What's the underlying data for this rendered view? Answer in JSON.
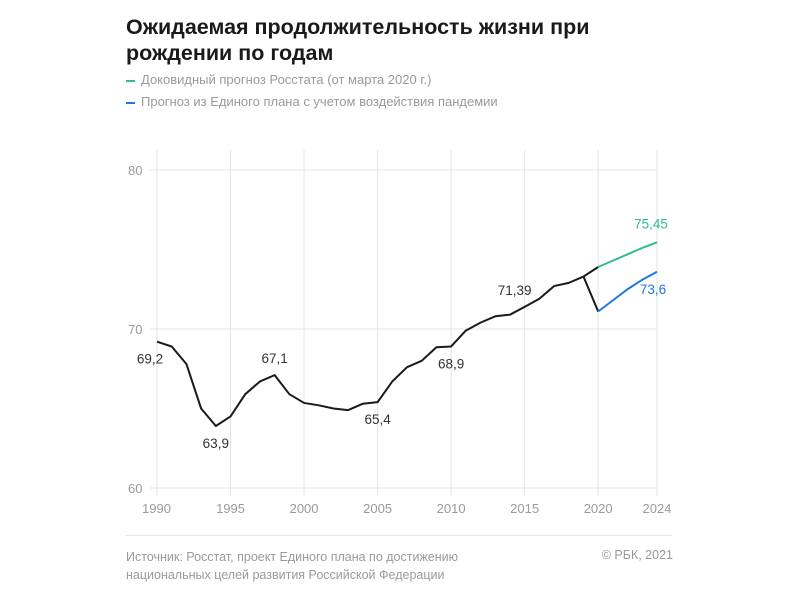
{
  "chart_data": {
    "type": "line",
    "title": "Ожидаемая продолжительность жизни при рождении по годам",
    "xlabel": "",
    "ylabel": "",
    "xlim": [
      1990,
      2024
    ],
    "ylim": [
      60,
      80
    ],
    "x_ticks": [
      "1990",
      "1995",
      "2000",
      "2005",
      "2010",
      "2015",
      "2020",
      "2024"
    ],
    "y_ticks": [
      "60",
      "70",
      "80"
    ],
    "grid": true,
    "legend_position": "top-left",
    "series": [
      {
        "color": "#1a1a1a",
        "x": [
          1990,
          1991,
          1992,
          1993,
          1994,
          1995,
          1996,
          1997,
          1998,
          1999,
          2000,
          2001,
          2002,
          2003,
          2004,
          2005,
          2006,
          2007,
          2008,
          2009,
          2010,
          2011,
          2012,
          2013,
          2014,
          2015,
          2016,
          2017,
          2018,
          2019
        ],
        "values": [
          69.2,
          68.9,
          67.8,
          65.0,
          63.9,
          64.5,
          65.9,
          66.7,
          67.1,
          65.9,
          65.35,
          65.2,
          65.0,
          64.9,
          65.3,
          65.4,
          66.7,
          67.6,
          68.0,
          68.85,
          68.9,
          69.9,
          70.4,
          70.8,
          70.9,
          71.39,
          71.9,
          72.7,
          72.9,
          73.3
        ]
      },
      {
        "name": "Доковидный прогноз Росстата (от марта 2020 г.)",
        "color": "#2fbf87",
        "x": [
          2020,
          2021,
          2022,
          2023,
          2024
        ],
        "values": [
          73.9,
          74.3,
          74.7,
          75.1,
          75.45
        ]
      },
      {
        "name": "Прогноз из Единого плана с учетом воздействия пандемии",
        "color": "#1f78e0",
        "x": [
          2020,
          2021,
          2022,
          2023,
          2024
        ],
        "values": [
          71.1,
          71.8,
          72.5,
          73.1,
          73.6
        ]
      }
    ],
    "annotations": [
      {
        "x": 1990,
        "y": 69.2,
        "text": "69,2",
        "color": "#333333"
      },
      {
        "x": 1994,
        "y": 63.9,
        "text": "63,9",
        "color": "#333333"
      },
      {
        "x": 1998,
        "y": 67.1,
        "text": "67,1",
        "color": "#333333"
      },
      {
        "x": 2005,
        "y": 65.4,
        "text": "65,4",
        "color": "#333333"
      },
      {
        "x": 2010,
        "y": 68.9,
        "text": "68,9",
        "color": "#333333"
      },
      {
        "x": 2015,
        "y": 71.39,
        "text": "71,39",
        "color": "#333333"
      },
      {
        "x": 2024,
        "y": 75.45,
        "text": "75,45",
        "color": "#2fbf87"
      },
      {
        "x": 2024,
        "y": 73.6,
        "text": "73,6",
        "color": "#1f78e0"
      }
    ]
  },
  "footer": {
    "source_line1": "Источник: Росстат, проект Единого плана по достижению",
    "source_line2": "национальных целей развития Российской Федерации",
    "copyright": "© РБК, 2021"
  }
}
